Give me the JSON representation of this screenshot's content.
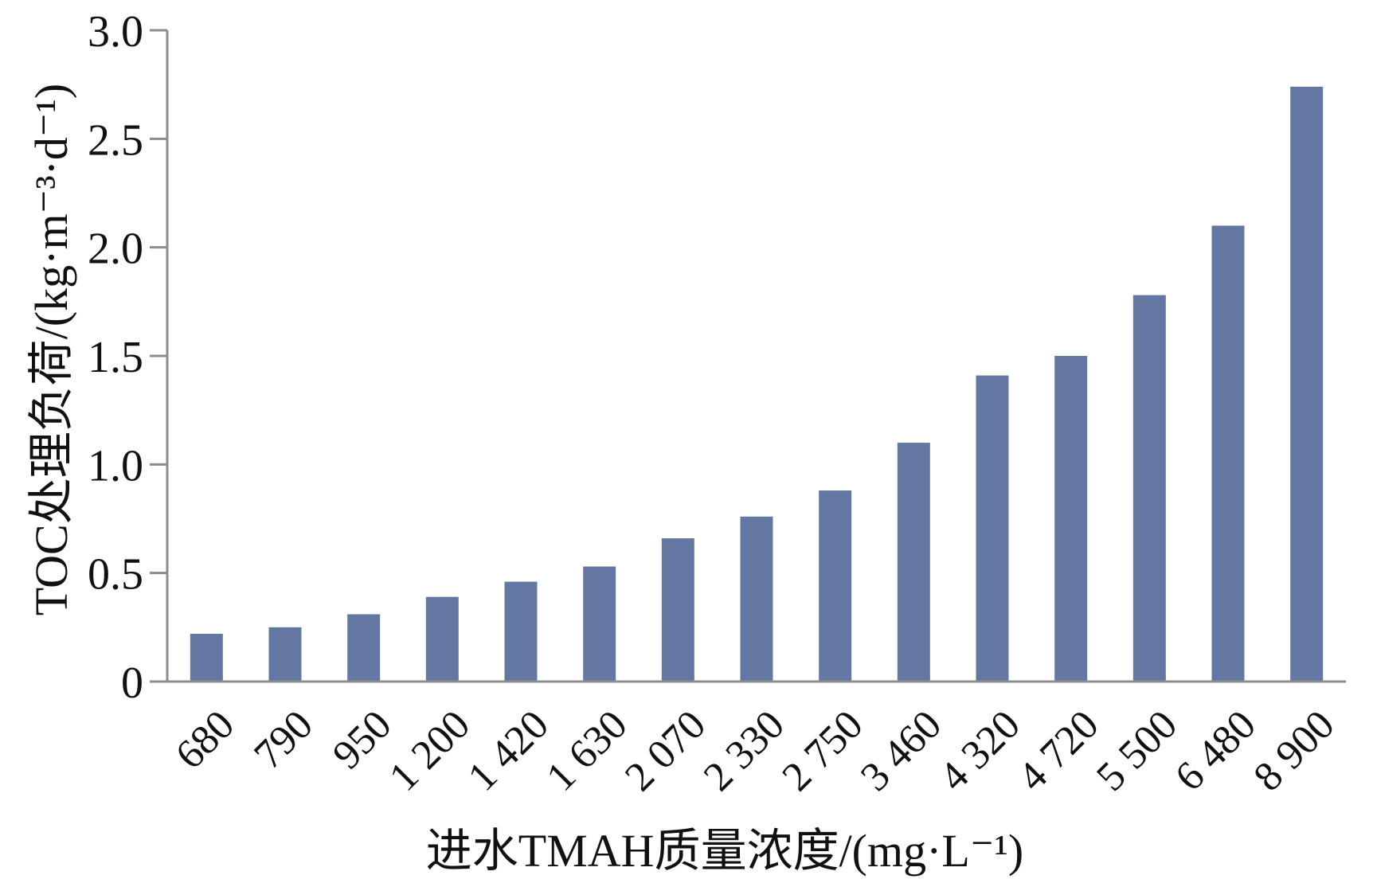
{
  "chart_data": {
    "type": "bar",
    "categories": [
      "680",
      "790",
      "950",
      "1 200",
      "1 420",
      "1 630",
      "2 070",
      "2 330",
      "2 750",
      "3 460",
      "4 320",
      "4 720",
      "5 500",
      "6 480",
      "8 900"
    ],
    "values": [
      0.22,
      0.25,
      0.31,
      0.39,
      0.46,
      0.53,
      0.66,
      0.76,
      0.88,
      1.1,
      1.41,
      1.5,
      1.78,
      2.1,
      2.74
    ],
    "xlabel": "进水TMAH质量浓度/(mg·L⁻¹)",
    "ylabel": "TOC处理负荷/(kg·m⁻³·d⁻¹)",
    "ylim": [
      0,
      3.0
    ],
    "yticks": [
      "0",
      "0.5",
      "1.0",
      "1.5",
      "2.0",
      "2.5",
      "3.0"
    ],
    "grid": false,
    "bar_color": "#6278a3",
    "axis_color": "#8c8c8c"
  }
}
